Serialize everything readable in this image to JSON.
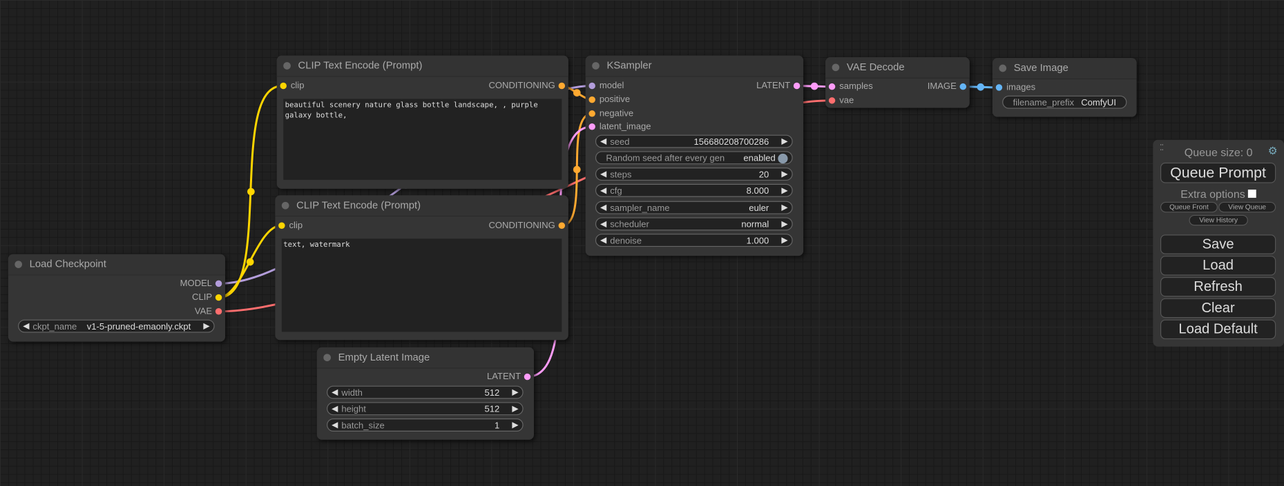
{
  "colors": {
    "MODEL": "#b39ddb",
    "CLIP": "#ffd500",
    "VAE": "#ff6e6e",
    "CONDITIONING": "#ffa931",
    "LATENT": "#ff9cf9",
    "IMAGE": "#64b5f6"
  },
  "nodes": {
    "clip_pos": {
      "title": "CLIP Text Encode (Prompt)",
      "input": "clip",
      "output": "CONDITIONING",
      "text": "beautiful scenery nature glass bottle landscape, , purple galaxy bottle,"
    },
    "clip_neg": {
      "title": "CLIP Text Encode (Prompt)",
      "input": "clip",
      "output": "CONDITIONING",
      "text": "text, watermark"
    },
    "checkpoint": {
      "title": "Load Checkpoint",
      "outputs": [
        "MODEL",
        "CLIP",
        "VAE"
      ],
      "ckpt_label": "ckpt_name",
      "ckpt_value": "v1-5-pruned-emaonly.ckpt"
    },
    "latent": {
      "title": "Empty Latent Image",
      "output": "LATENT",
      "widgets": [
        {
          "label": "width",
          "value": "512"
        },
        {
          "label": "height",
          "value": "512"
        },
        {
          "label": "batch_size",
          "value": "1"
        }
      ]
    },
    "ksampler": {
      "title": "KSampler",
      "inputs": [
        "model",
        "positive",
        "negative",
        "latent_image"
      ],
      "output": "LATENT",
      "seed": {
        "label": "seed",
        "value": "156680208700286"
      },
      "random_seed": {
        "label": "Random seed after every gen",
        "value": "enabled"
      },
      "widgets": [
        {
          "label": "steps",
          "value": "20"
        },
        {
          "label": "cfg",
          "value": "8.000"
        },
        {
          "label": "sampler_name",
          "value": "euler"
        },
        {
          "label": "scheduler",
          "value": "normal"
        },
        {
          "label": "denoise",
          "value": "1.000"
        }
      ]
    },
    "vae_decode": {
      "title": "VAE Decode",
      "inputs": [
        "samples",
        "vae"
      ],
      "output": "IMAGE"
    },
    "save_image": {
      "title": "Save Image",
      "input": "images",
      "prefix_label": "filename_prefix",
      "prefix_value": "ComfyUI"
    }
  },
  "panel": {
    "queue_size": "Queue size: 0",
    "queue_prompt": "Queue Prompt",
    "extra_options": "Extra options",
    "extra_checked": false,
    "queue_front": "Queue Front",
    "view_queue": "View Queue",
    "view_history": "View History",
    "save": "Save",
    "load": "Load",
    "refresh": "Refresh",
    "clear": "Clear",
    "load_default": "Load Default"
  }
}
